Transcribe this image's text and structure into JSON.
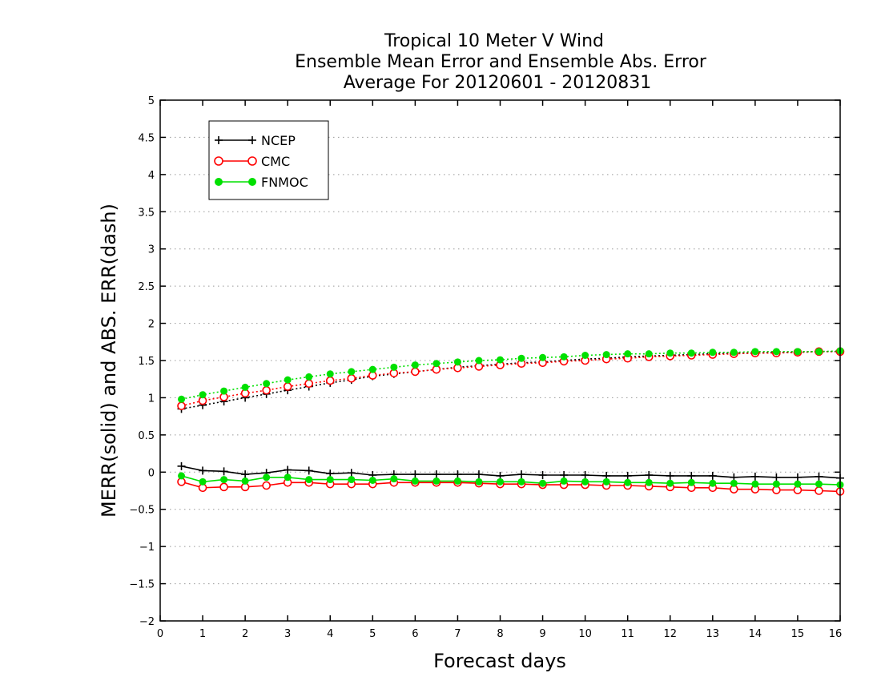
{
  "chart_data": {
    "type": "line",
    "title_lines": [
      "Tropical 10 Meter V Wind",
      "Ensemble Mean Error and Ensemble Abs. Error",
      "Average For 20120601 - 20120831"
    ],
    "xlabel": "Forecast days",
    "ylabel": "MERR(solid) and ABS. ERR(dash)",
    "xlim": [
      0,
      16
    ],
    "ylim": [
      -2,
      5
    ],
    "x_ticks": [
      0,
      1,
      2,
      3,
      4,
      5,
      6,
      7,
      8,
      9,
      10,
      11,
      12,
      13,
      14,
      15,
      16
    ],
    "x_tick_labels": [
      "0",
      "1",
      "2",
      "3",
      "4",
      "5",
      "6",
      "7",
      "8",
      "9",
      "10",
      "11",
      "12",
      "13",
      "14",
      "15",
      "16"
    ],
    "y_ticks": [
      -2,
      -1.5,
      -1,
      -0.5,
      0,
      0.5,
      1,
      1.5,
      2,
      2.5,
      3,
      3.5,
      4,
      4.5,
      5
    ],
    "y_tick_labels": [
      "−2",
      "−1.5",
      "−1",
      "−0.5",
      "0",
      "0.5",
      "1",
      "1.5",
      "2",
      "2.5",
      "3",
      "3.5",
      "4",
      "4.5",
      "5"
    ],
    "grid": "horizontal-dotted",
    "legend_position": "top-left",
    "x": [
      0.5,
      1,
      1.5,
      2,
      2.5,
      3,
      3.5,
      4,
      4.5,
      5,
      5.5,
      6,
      6.5,
      7,
      7.5,
      8,
      8.5,
      9,
      9.5,
      10,
      10.5,
      11,
      11.5,
      12,
      12.5,
      13,
      13.5,
      14,
      14.5,
      15,
      15.5,
      16
    ],
    "series": [
      {
        "name": "NCEP",
        "color": "#000000",
        "marker": "plus",
        "mean_error": [
          0.08,
          0.02,
          0.01,
          -0.03,
          -0.01,
          0.03,
          0.02,
          -0.02,
          -0.01,
          -0.04,
          -0.03,
          -0.03,
          -0.03,
          -0.03,
          -0.03,
          -0.05,
          -0.03,
          -0.04,
          -0.04,
          -0.04,
          -0.05,
          -0.05,
          -0.04,
          -0.05,
          -0.05,
          -0.05,
          -0.07,
          -0.06,
          -0.07,
          -0.07,
          -0.06,
          -0.08
        ],
        "abs_error": [
          0.85,
          0.9,
          0.95,
          1.0,
          1.05,
          1.1,
          1.15,
          1.2,
          1.24,
          1.29,
          1.32,
          1.35,
          1.38,
          1.41,
          1.43,
          1.45,
          1.47,
          1.48,
          1.5,
          1.52,
          1.53,
          1.55,
          1.56,
          1.57,
          1.58,
          1.59,
          1.6,
          1.6,
          1.61,
          1.61,
          1.62,
          1.62
        ]
      },
      {
        "name": "CMC",
        "color": "#ff0000",
        "marker": "open-circle",
        "mean_error": [
          -0.13,
          -0.21,
          -0.2,
          -0.2,
          -0.18,
          -0.14,
          -0.14,
          -0.16,
          -0.16,
          -0.16,
          -0.14,
          -0.14,
          -0.14,
          -0.14,
          -0.15,
          -0.16,
          -0.16,
          -0.17,
          -0.17,
          -0.17,
          -0.18,
          -0.18,
          -0.19,
          -0.2,
          -0.21,
          -0.21,
          -0.23,
          -0.23,
          -0.24,
          -0.24,
          -0.25,
          -0.26
        ],
        "abs_error": [
          0.89,
          0.96,
          1.01,
          1.06,
          1.1,
          1.15,
          1.19,
          1.23,
          1.26,
          1.3,
          1.33,
          1.35,
          1.38,
          1.4,
          1.42,
          1.44,
          1.46,
          1.47,
          1.49,
          1.5,
          1.52,
          1.53,
          1.55,
          1.56,
          1.57,
          1.58,
          1.59,
          1.6,
          1.6,
          1.61,
          1.62,
          1.62
        ]
      },
      {
        "name": "FNMOC",
        "color": "#00e000",
        "marker": "filled-circle",
        "mean_error": [
          -0.05,
          -0.13,
          -0.1,
          -0.12,
          -0.07,
          -0.07,
          -0.1,
          -0.1,
          -0.1,
          -0.11,
          -0.09,
          -0.12,
          -0.12,
          -0.12,
          -0.13,
          -0.13,
          -0.13,
          -0.15,
          -0.12,
          -0.13,
          -0.13,
          -0.14,
          -0.14,
          -0.15,
          -0.14,
          -0.15,
          -0.15,
          -0.16,
          -0.16,
          -0.16,
          -0.16,
          -0.17
        ],
        "abs_error": [
          0.98,
          1.04,
          1.09,
          1.14,
          1.19,
          1.24,
          1.28,
          1.32,
          1.35,
          1.38,
          1.41,
          1.44,
          1.46,
          1.48,
          1.5,
          1.51,
          1.53,
          1.54,
          1.55,
          1.57,
          1.58,
          1.59,
          1.59,
          1.6,
          1.6,
          1.61,
          1.61,
          1.62,
          1.62,
          1.62,
          1.62,
          1.63
        ]
      }
    ]
  }
}
